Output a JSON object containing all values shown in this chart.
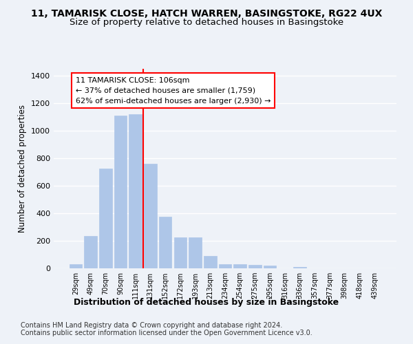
{
  "title_line1": "11, TAMARISK CLOSE, HATCH WARREN, BASINGSTOKE, RG22 4UX",
  "title_line2": "Size of property relative to detached houses in Basingstoke",
  "xlabel": "Distribution of detached houses by size in Basingstoke",
  "ylabel": "Number of detached properties",
  "categories": [
    "29sqm",
    "49sqm",
    "70sqm",
    "90sqm",
    "111sqm",
    "131sqm",
    "152sqm",
    "172sqm",
    "193sqm",
    "213sqm",
    "234sqm",
    "254sqm",
    "275sqm",
    "295sqm",
    "316sqm",
    "336sqm",
    "357sqm",
    "377sqm",
    "398sqm",
    "418sqm",
    "439sqm"
  ],
  "bar_values": [
    30,
    235,
    725,
    1110,
    1120,
    760,
    375,
    225,
    225,
    90,
    30,
    30,
    25,
    20,
    0,
    10,
    0,
    0,
    0,
    0,
    0
  ],
  "bar_color": "#aec6e8",
  "bar_edgecolor": "#aec6e8",
  "vline_x": 4.5,
  "vline_color": "red",
  "annotation_line1": "11 TAMARISK CLOSE: 106sqm",
  "annotation_line2": "← 37% of detached houses are smaller (1,759)",
  "annotation_line3": "62% of semi-detached houses are larger (2,930) →",
  "box_edgecolor": "red",
  "ylim": [
    0,
    1450
  ],
  "yticks": [
    0,
    200,
    400,
    600,
    800,
    1000,
    1200,
    1400
  ],
  "background_color": "#eef2f8",
  "plot_bg_color": "#eef2f8",
  "grid_color": "white",
  "footer": "Contains HM Land Registry data © Crown copyright and database right 2024.\nContains public sector information licensed under the Open Government Licence v3.0.",
  "title_fontsize": 10,
  "subtitle_fontsize": 9.5,
  "xlabel_fontsize": 9,
  "ylabel_fontsize": 8.5,
  "footer_fontsize": 7,
  "annotation_fontsize": 8
}
